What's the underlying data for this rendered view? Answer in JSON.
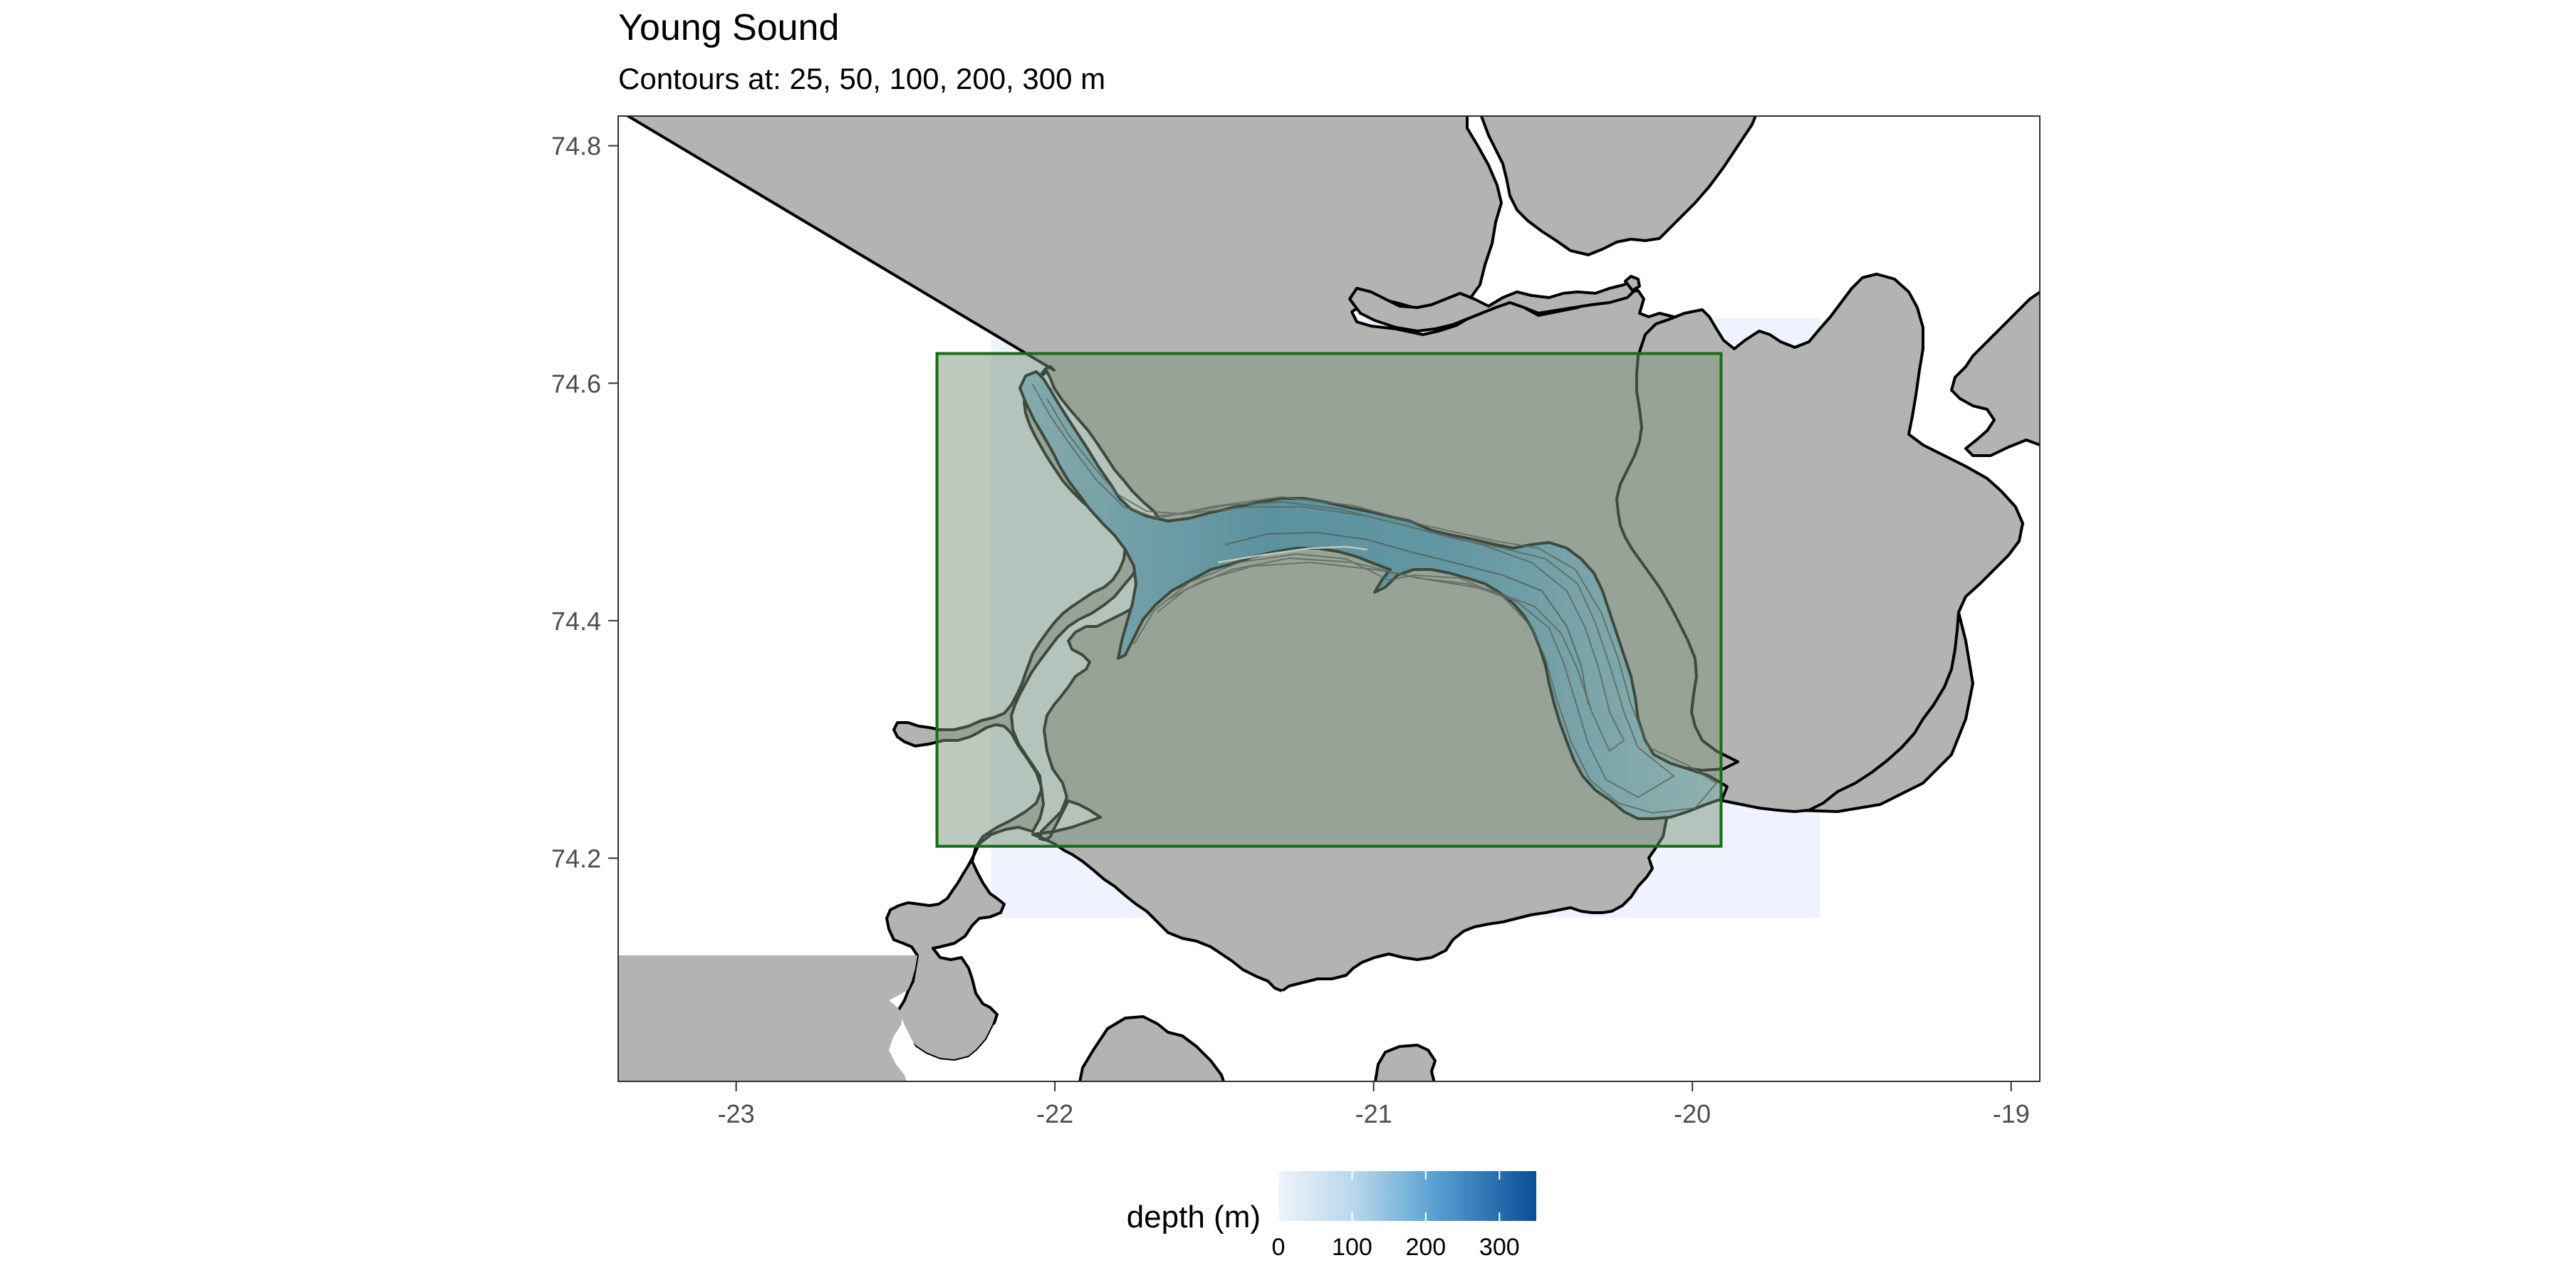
{
  "map": {
    "title": "Young Sound",
    "subtitle": "Contours at: 25, 50, 100, 200, 300 m",
    "x_ticks": [
      {
        "value": -23,
        "label": "-23"
      },
      {
        "value": -22,
        "label": "-22"
      },
      {
        "value": -21,
        "label": "-21"
      },
      {
        "value": -20,
        "label": "-20"
      },
      {
        "value": -19,
        "label": "-19"
      }
    ],
    "y_ticks": [
      {
        "value": 74.2,
        "label": "74.2"
      },
      {
        "value": 74.4,
        "label": "74.4"
      },
      {
        "value": 74.6,
        "label": "74.6"
      },
      {
        "value": 74.8,
        "label": "74.8"
      }
    ],
    "xlim": [
      -23.37,
      -18.91
    ],
    "ylim": [
      74.012,
      74.825
    ],
    "study_area": {
      "lon_min": -22.37,
      "lon_max": -19.91,
      "lat_min": 74.21,
      "lat_max": 74.625
    },
    "bathymetry_extent": {
      "lon_min": -22.2,
      "lon_max": -19.6,
      "lat_min": 74.15,
      "lat_max": 74.655
    },
    "contours_m": [
      25,
      50,
      100,
      200,
      300
    ],
    "legend": {
      "title": "depth (m)",
      "ticks": [
        {
          "value": 0,
          "label": "0"
        },
        {
          "value": 100,
          "label": "100"
        },
        {
          "value": 200,
          "label": "200"
        },
        {
          "value": 300,
          "label": "300"
        }
      ],
      "range": [
        0,
        350
      ]
    },
    "colors": {
      "land": "#b3b3b3",
      "sea": "#ffffff",
      "coastline": "#000000",
      "study_box": "#1a6b1a",
      "study_fill": "#7a947a",
      "bathy_extent": "#eef3ff",
      "depth_low": "#eef4fb",
      "depth_high": "#0a4e97"
    }
  }
}
